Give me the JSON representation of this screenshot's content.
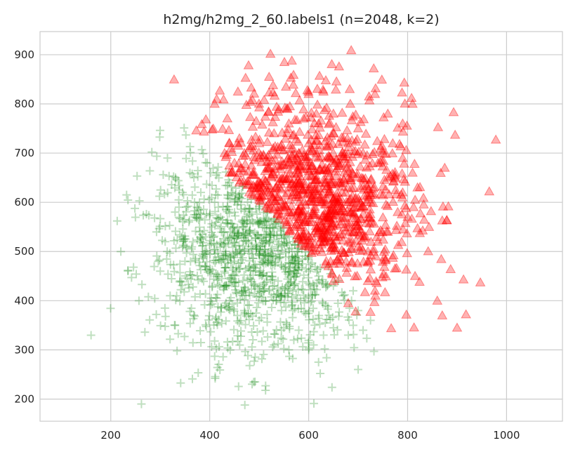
{
  "chart_data": {
    "type": "scatter",
    "title": "h2mg/h2mg_2_60.labels1 (n=2048, k=2)",
    "xlabel": "",
    "ylabel": "",
    "xlim": [
      57,
      1113
    ],
    "ylim": [
      155,
      947
    ],
    "x_ticks": [
      "200",
      "400",
      "600",
      "800",
      "1000"
    ],
    "y_ticks": [
      "200",
      "300",
      "400",
      "500",
      "600",
      "700",
      "800",
      "900"
    ],
    "grid": true,
    "style": "seaborn-whitegrid",
    "series": [
      {
        "label_id": 0,
        "marker": "plus",
        "color": "#008000",
        "alpha": 0.25,
        "n_points": 1038,
        "center": [
          500,
          500
        ],
        "spread": [
          100,
          100
        ],
        "points": [
          [
            213,
            562
          ],
          [
            232,
            615
          ],
          [
            262,
            190
          ],
          [
            269,
            336
          ],
          [
            272,
            576
          ],
          [
            283,
            702
          ],
          [
            279,
            664
          ],
          [
            306,
            656
          ],
          [
            319,
            553
          ],
          [
            361,
            701
          ],
          [
            365,
            241
          ],
          [
            334,
            298
          ],
          [
            242,
            447
          ],
          [
            246,
            468
          ],
          [
            257,
            400
          ],
          [
            263,
            433
          ],
          [
            276,
            408
          ],
          [
            292,
            372
          ],
          [
            296,
            480
          ],
          [
            314,
            500
          ],
          [
            330,
            350
          ],
          [
            355,
            603
          ],
          [
            358,
            560
          ],
          [
            368,
            650
          ],
          [
            382,
            620
          ],
          [
            410,
            287
          ],
          [
            427,
            286
          ],
          [
            471,
            188
          ],
          [
            490,
            277
          ],
          [
            513,
            227
          ],
          [
            530,
            310
          ],
          [
            560,
            300
          ],
          [
            620,
            275
          ],
          [
            690,
            350
          ],
          [
            700,
            260
          ],
          [
            732,
            297
          ],
          [
            725,
            360
          ],
          [
            690,
            420
          ],
          [
            660,
            440
          ],
          [
            640,
            470
          ],
          [
            600,
            300
          ],
          [
            580,
            340
          ],
          [
            545,
            380
          ],
          [
            520,
            420
          ],
          [
            480,
            470
          ],
          [
            430,
            540
          ],
          [
            410,
            600
          ],
          [
            440,
            640
          ],
          [
            460,
            610
          ],
          [
            485,
            580
          ],
          [
            520,
            540
          ],
          [
            540,
            520
          ],
          [
            560,
            500
          ],
          [
            580,
            480
          ],
          [
            600,
            460
          ],
          [
            620,
            450
          ],
          [
            650,
            430
          ],
          [
            670,
            410
          ],
          [
            700,
            380
          ],
          [
            710,
            340
          ],
          [
            680,
            330
          ],
          [
            650,
            345
          ],
          [
            630,
            330
          ],
          [
            610,
            310
          ],
          [
            570,
            320
          ],
          [
            550,
            345
          ],
          [
            500,
            360
          ],
          [
            470,
            380
          ],
          [
            440,
            400
          ],
          [
            420,
            430
          ],
          [
            400,
            460
          ],
          [
            390,
            500
          ],
          [
            380,
            540
          ],
          [
            370,
            570
          ],
          [
            350,
            480
          ],
          [
            340,
            440
          ],
          [
            320,
            410
          ],
          [
            300,
            460
          ],
          [
            310,
            520
          ],
          [
            330,
            580
          ],
          [
            345,
            620
          ],
          [
            360,
            660
          ],
          [
            395,
            680
          ],
          [
            415,
            660
          ]
        ]
      },
      {
        "label_id": 1,
        "marker": "triangle-up",
        "color": "#ff0000",
        "alpha": 0.3,
        "n_points": 1010,
        "center": [
          600,
          600
        ],
        "spread": [
          100,
          100
        ],
        "points": [
          [
            686,
            909
          ],
          [
            566,
            888
          ],
          [
            551,
            885
          ],
          [
            520,
            855
          ],
          [
            528,
            838
          ],
          [
            520,
            823
          ],
          [
            484,
            833
          ],
          [
            457,
            825
          ],
          [
            428,
            809
          ],
          [
            410,
            800
          ],
          [
            405,
            748
          ],
          [
            510,
            808
          ],
          [
            538,
            784
          ],
          [
            562,
            795
          ],
          [
            600,
            820
          ],
          [
            630,
            825
          ],
          [
            655,
            829
          ],
          [
            683,
            830
          ],
          [
            722,
            815
          ],
          [
            734,
            820
          ],
          [
            808,
            812
          ],
          [
            810,
            800
          ],
          [
            893,
            783
          ],
          [
            896,
            737
          ],
          [
            875,
            670
          ],
          [
            965,
            622
          ],
          [
            870,
            563
          ],
          [
            832,
            609
          ],
          [
            812,
            590
          ],
          [
            800,
            570
          ],
          [
            820,
            547
          ],
          [
            788,
            519
          ],
          [
            781,
            513
          ],
          [
            815,
            450
          ],
          [
            860,
            400
          ],
          [
            870,
            370
          ],
          [
            900,
            345
          ],
          [
            913,
            443
          ],
          [
            947,
            437
          ],
          [
            770,
            487
          ],
          [
            756,
            484
          ],
          [
            735,
            410
          ],
          [
            733,
            397
          ],
          [
            725,
            377
          ],
          [
            695,
            378
          ],
          [
            680,
            395
          ],
          [
            650,
            440
          ],
          [
            640,
            470
          ],
          [
            720,
            480
          ],
          [
            740,
            520
          ],
          [
            760,
            540
          ],
          [
            780,
            580
          ],
          [
            790,
            620
          ],
          [
            760,
            650
          ],
          [
            740,
            680
          ],
          [
            710,
            700
          ],
          [
            680,
            720
          ],
          [
            650,
            740
          ],
          [
            620,
            760
          ],
          [
            590,
            770
          ],
          [
            560,
            760
          ],
          [
            530,
            740
          ],
          [
            500,
            720
          ],
          [
            470,
            700
          ],
          [
            450,
            680
          ],
          [
            440,
            660
          ],
          [
            460,
            640
          ],
          [
            480,
            620
          ],
          [
            500,
            610
          ],
          [
            520,
            600
          ],
          [
            540,
            590
          ],
          [
            560,
            580
          ],
          [
            580,
            570
          ],
          [
            600,
            560
          ],
          [
            620,
            550
          ],
          [
            640,
            540
          ],
          [
            660,
            530
          ],
          [
            680,
            520
          ],
          [
            700,
            510
          ],
          [
            720,
            500
          ],
          [
            700,
            560
          ],
          [
            680,
            600
          ],
          [
            660,
            640
          ],
          [
            640,
            660
          ],
          [
            620,
            640
          ],
          [
            600,
            620
          ],
          [
            580,
            610
          ],
          [
            560,
            630
          ],
          [
            540,
            650
          ],
          [
            520,
            670
          ],
          [
            500,
            690
          ],
          [
            480,
            710
          ],
          [
            460,
            730
          ],
          [
            440,
            720
          ],
          [
            430,
            700
          ],
          [
            750,
            700
          ],
          [
            770,
            720
          ],
          [
            790,
            690
          ],
          [
            810,
            660
          ],
          [
            820,
            630
          ],
          [
            790,
            760
          ],
          [
            760,
            780
          ],
          [
            700,
            750
          ],
          [
            650,
            780
          ],
          [
            600,
            720
          ],
          [
            580,
            700
          ],
          [
            620,
            690
          ],
          [
            660,
            680
          ]
        ]
      }
    ]
  }
}
